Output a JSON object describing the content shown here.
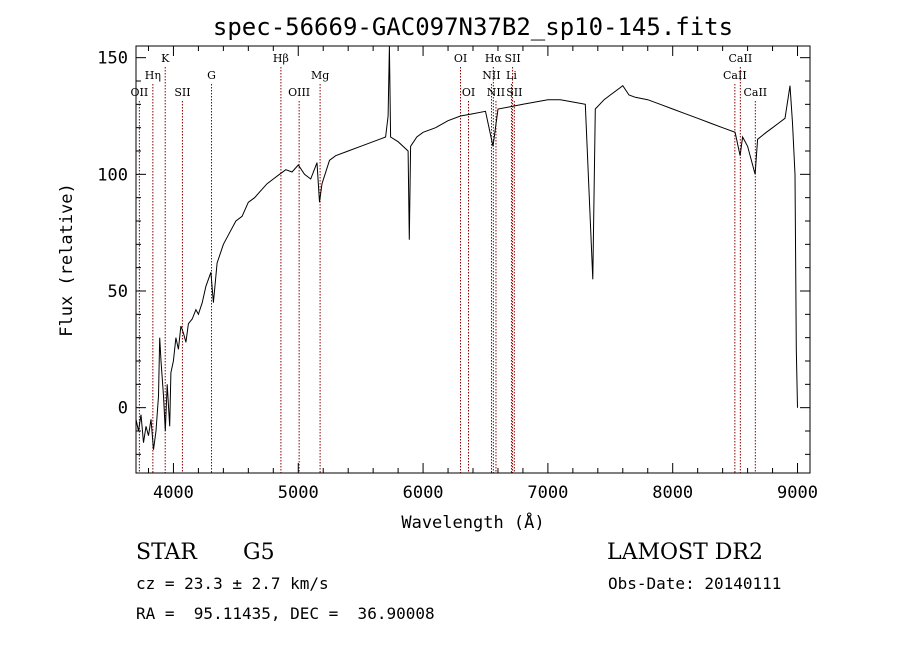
{
  "chart_data": {
    "type": "line",
    "title": "spec-56669-GAC097N37B2_sp10-145.fits",
    "xlabel": "Wavelength (Å)",
    "ylabel": "Flux (relative)",
    "xlim": [
      3700,
      9100
    ],
    "ylim": [
      -28,
      155
    ],
    "xticks": [
      4000,
      5000,
      6000,
      7000,
      8000,
      9000
    ],
    "yticks": [
      0,
      50,
      100,
      150
    ],
    "grid": false,
    "legend": "none",
    "series": [
      {
        "points": [
          [
            3700,
            -5
          ],
          [
            3720,
            -10
          ],
          [
            3740,
            -3
          ],
          [
            3760,
            -15
          ],
          [
            3780,
            -8
          ],
          [
            3800,
            -12
          ],
          [
            3820,
            -5
          ],
          [
            3840,
            -18
          ],
          [
            3860,
            -10
          ],
          [
            3880,
            5
          ],
          [
            3890,
            30
          ],
          [
            3900,
            20
          ],
          [
            3920,
            5
          ],
          [
            3935,
            -10
          ],
          [
            3950,
            10
          ],
          [
            3970,
            -8
          ],
          [
            3980,
            15
          ],
          [
            4000,
            20
          ],
          [
            4020,
            30
          ],
          [
            4040,
            25
          ],
          [
            4060,
            35
          ],
          [
            4080,
            32
          ],
          [
            4100,
            28
          ],
          [
            4120,
            36
          ],
          [
            4150,
            38
          ],
          [
            4180,
            42
          ],
          [
            4200,
            40
          ],
          [
            4230,
            45
          ],
          [
            4260,
            52
          ],
          [
            4300,
            58
          ],
          [
            4320,
            45
          ],
          [
            4350,
            62
          ],
          [
            4400,
            70
          ],
          [
            4450,
            75
          ],
          [
            4500,
            80
          ],
          [
            4550,
            82
          ],
          [
            4600,
            88
          ],
          [
            4650,
            90
          ],
          [
            4700,
            93
          ],
          [
            4750,
            96
          ],
          [
            4800,
            98
          ],
          [
            4850,
            100
          ],
          [
            4900,
            102
          ],
          [
            4950,
            101
          ],
          [
            5000,
            104
          ],
          [
            5050,
            100
          ],
          [
            5100,
            98
          ],
          [
            5150,
            105
          ],
          [
            5170,
            88
          ],
          [
            5190,
            96
          ],
          [
            5250,
            106
          ],
          [
            5300,
            108
          ],
          [
            5400,
            110
          ],
          [
            5500,
            112
          ],
          [
            5600,
            114
          ],
          [
            5700,
            116
          ],
          [
            5720,
            125
          ],
          [
            5730,
            155
          ],
          [
            5740,
            116
          ],
          [
            5800,
            114
          ],
          [
            5880,
            110
          ],
          [
            5890,
            72
          ],
          [
            5900,
            112
          ],
          [
            5950,
            116
          ],
          [
            6000,
            118
          ],
          [
            6100,
            120
          ],
          [
            6200,
            123
          ],
          [
            6300,
            125
          ],
          [
            6400,
            126
          ],
          [
            6500,
            127
          ],
          [
            6560,
            112
          ],
          [
            6600,
            128
          ],
          [
            6700,
            129
          ],
          [
            6800,
            130
          ],
          [
            6900,
            131
          ],
          [
            7000,
            132
          ],
          [
            7100,
            132
          ],
          [
            7200,
            131
          ],
          [
            7300,
            130
          ],
          [
            7360,
            55
          ],
          [
            7380,
            128
          ],
          [
            7450,
            132
          ],
          [
            7500,
            134
          ],
          [
            7600,
            138
          ],
          [
            7650,
            134
          ],
          [
            7700,
            133
          ],
          [
            7800,
            132
          ],
          [
            7900,
            130
          ],
          [
            8000,
            128
          ],
          [
            8100,
            126
          ],
          [
            8200,
            124
          ],
          [
            8300,
            122
          ],
          [
            8400,
            120
          ],
          [
            8500,
            118
          ],
          [
            8540,
            108
          ],
          [
            8560,
            116
          ],
          [
            8600,
            112
          ],
          [
            8660,
            100
          ],
          [
            8680,
            115
          ],
          [
            8750,
            118
          ],
          [
            8800,
            120
          ],
          [
            8850,
            122
          ],
          [
            8900,
            124
          ],
          [
            8940,
            138
          ],
          [
            8960,
            122
          ],
          [
            8980,
            100
          ],
          [
            8990,
            25
          ],
          [
            9000,
            0
          ]
        ]
      }
    ],
    "lines": [
      {
        "label": "OII",
        "x": 3727,
        "row": 3
      },
      {
        "label": "Hη",
        "x": 3835,
        "row": 2
      },
      {
        "label": "K",
        "x": 3934,
        "row": 1
      },
      {
        "label": "SII",
        "x": 4072,
        "row": 3
      },
      {
        "label": "G",
        "x": 4305,
        "row": 2
      },
      {
        "label": "Hβ",
        "x": 4861,
        "row": 1
      },
      {
        "label": "OIII",
        "x": 5007,
        "row": 3
      },
      {
        "label": "Mg",
        "x": 5175,
        "row": 2
      },
      {
        "label": "OI",
        "x": 6300,
        "row": 1
      },
      {
        "label": "OI",
        "x": 6364,
        "row": 3
      },
      {
        "label": "Hα",
        "x": 6563,
        "row": 1
      },
      {
        "label": "NII",
        "x": 6548,
        "row": 2
      },
      {
        "label": "NII",
        "x": 6584,
        "row": 3
      },
      {
        "label": "SII",
        "x": 6717,
        "row": 1
      },
      {
        "label": "Li",
        "x": 6708,
        "row": 2
      },
      {
        "label": "SII",
        "x": 6731,
        "row": 3
      },
      {
        "label": "CaII",
        "x": 8542,
        "row": 1
      },
      {
        "label": "CaII",
        "x": 8498,
        "row": 2
      },
      {
        "label": "CaII",
        "x": 8662,
        "row": 3
      }
    ]
  },
  "info": {
    "object_class": "STAR",
    "subclass": "G5",
    "survey": "LAMOST DR2",
    "cz": "cz = 23.3 ± 2.7 km/s",
    "obs_date": "Obs-Date: 20140111",
    "coords": "RA =  95.11435, DEC =  36.90008"
  }
}
